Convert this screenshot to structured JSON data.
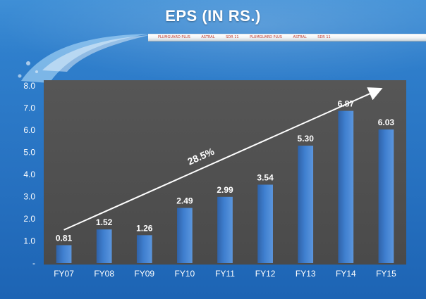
{
  "header": {
    "title": "EPS (IN RS.)",
    "pipe_text": [
      "PLUMGUARD PLUS",
      "ASTRAL",
      "SDR 11",
      "PLUMGUARD PLUS",
      "ASTRAL",
      "SDR 11"
    ]
  },
  "colors": {
    "bar": "#3f7fcf",
    "plot_bg": "#4f4f4f",
    "text": "#ffffff"
  },
  "chart_data": {
    "type": "bar",
    "title": "EPS (IN RS.)",
    "categories": [
      "FY07",
      "FY08",
      "FY09",
      "FY10",
      "FY11",
      "FY12",
      "FY13",
      "FY14",
      "FY15"
    ],
    "values": [
      0.81,
      1.52,
      1.26,
      2.49,
      2.99,
      3.54,
      5.3,
      6.87,
      6.03
    ],
    "value_labels": [
      "0.81",
      "1.52",
      "1.26",
      "2.49",
      "2.99",
      "3.54",
      "5.30",
      "6.87",
      "6.03"
    ],
    "ylim": [
      0,
      8
    ],
    "yticks": [
      "-",
      "1.0",
      "2.0",
      "3.0",
      "4.0",
      "5.0",
      "6.0",
      "7.0",
      "8.0"
    ],
    "xlabel": "",
    "ylabel": "",
    "grid": false,
    "annotation": "28.5%"
  }
}
